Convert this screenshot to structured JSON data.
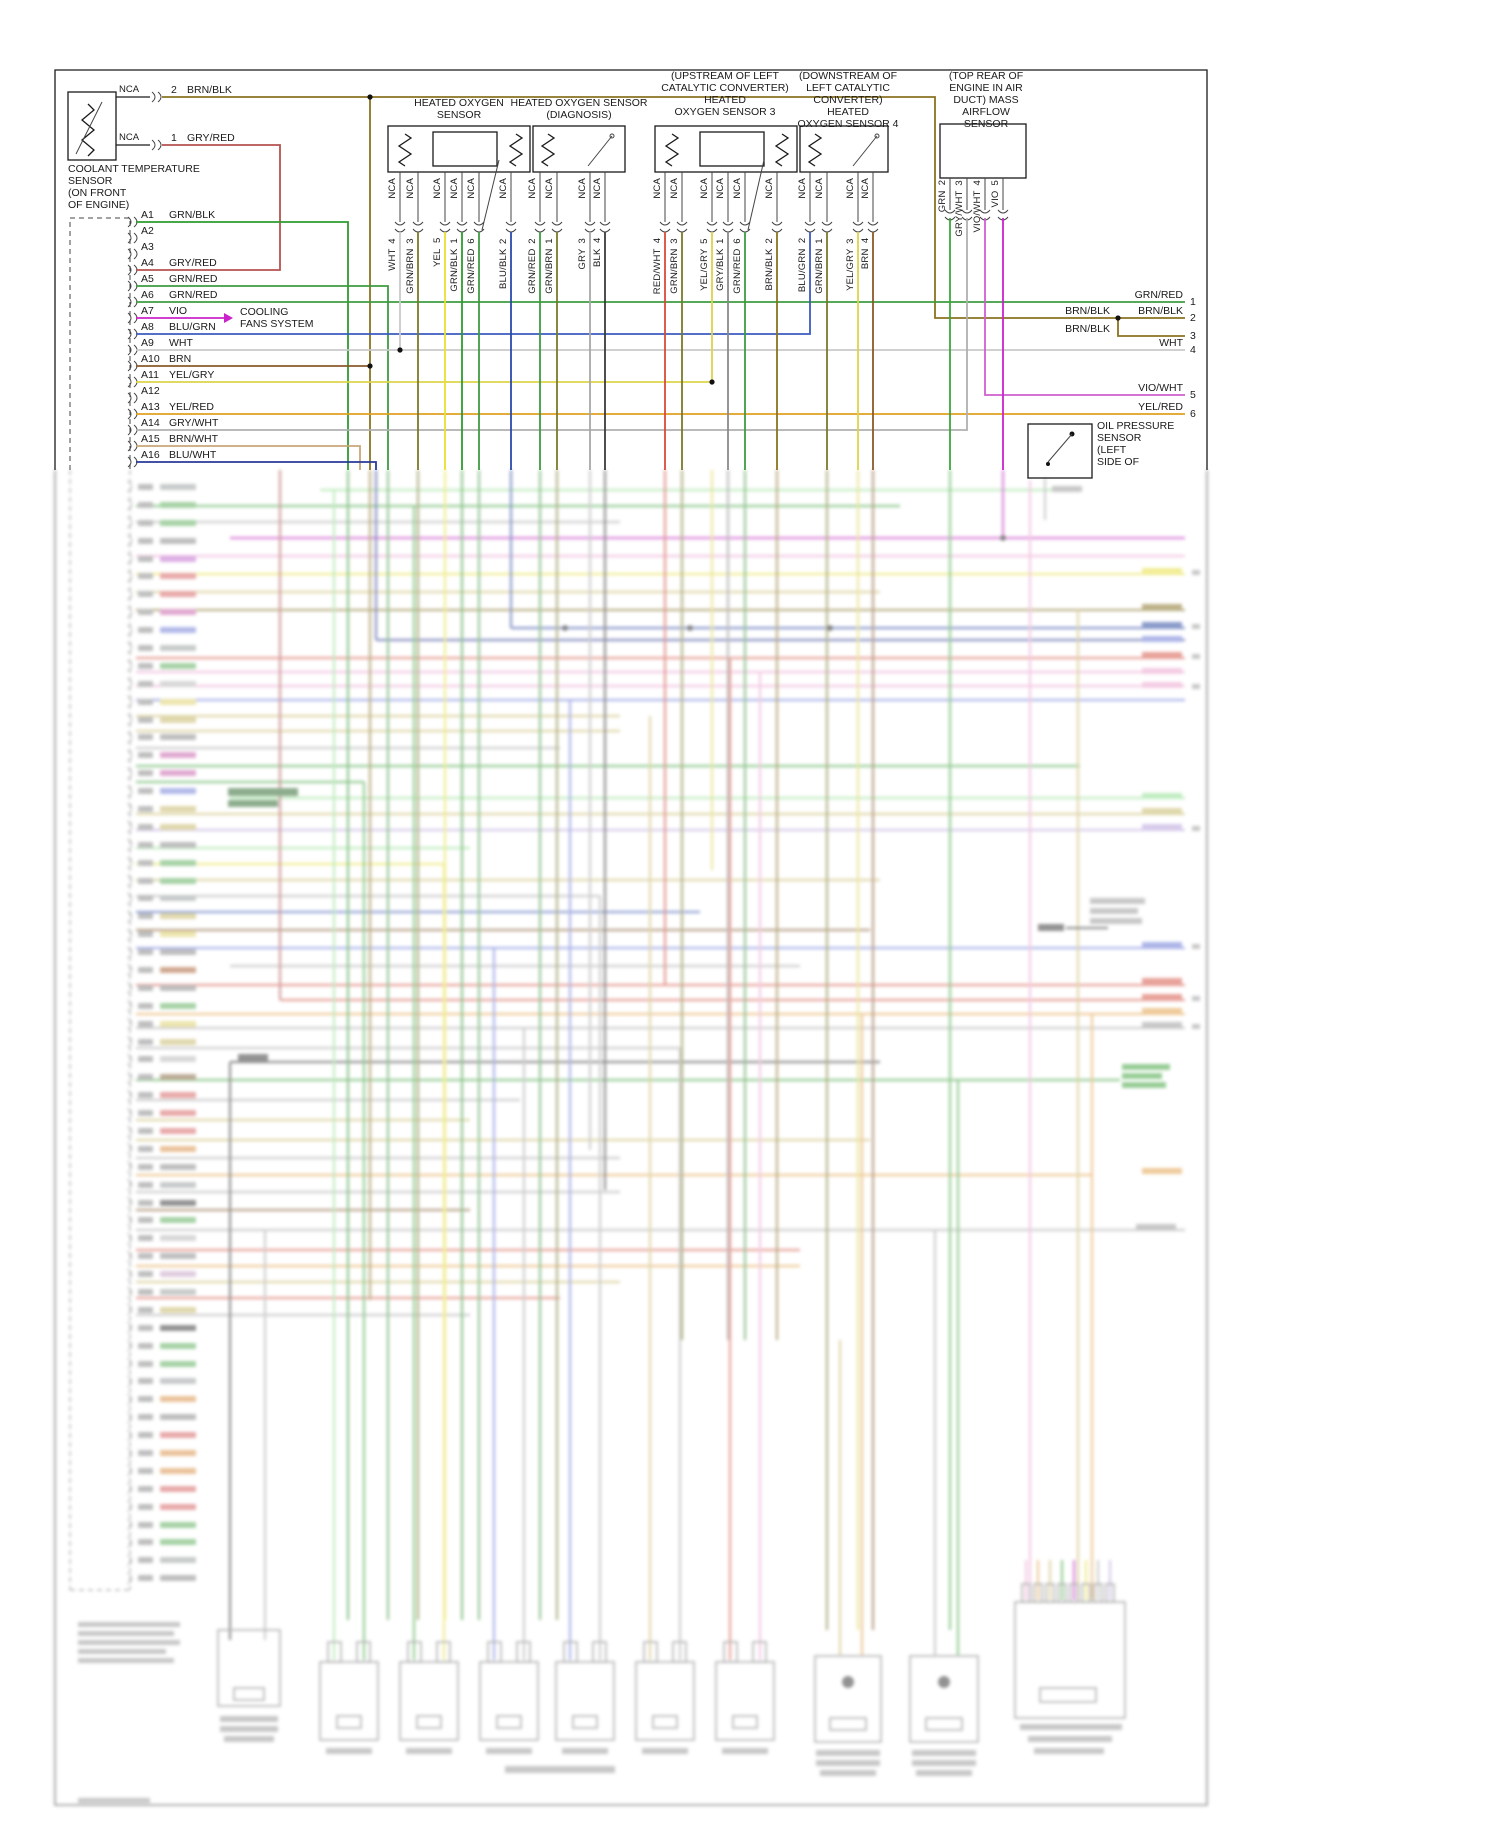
{
  "labels": {
    "nca": "NCA"
  },
  "palette": {
    "BRN/BLK": "#8a7320",
    "GRY/RED": "#b5524f",
    "GRN/BLK": "#2e9b2e",
    "GRN/RED": "#3f9b3f",
    "VIO": "#cc22cc",
    "BLU/GRN": "#3c5bc0",
    "WHT": "#c9c9c9",
    "BRN": "#8a5a2a",
    "YEL/GRY": "#ddd44a",
    "YEL": "#e8e030",
    "YEL/RED": "#e0a020",
    "GRY/WHT": "#b0b0b0",
    "BRN/WHT": "#c8a878",
    "BLU/WHT": "#2a3a9a",
    "RED/WHT": "#d94a3a",
    "GRY/BLK": "#8a8a8a",
    "GRY": "#a8a8a8",
    "BLK": "#3a3a3a",
    "GRN/BRN": "#7a7a28",
    "BLU/BLK": "#2a4aaa",
    "GRN": "#3aa83a",
    "VIO/WHT": "#cf5fd0"
  },
  "coolant": {
    "title": "COOLANT TEMPERATURE\nSENSOR\n(ON FRONT\nOF ENGINE)",
    "pins": [
      {
        "num": "2",
        "wire": "BRN/BLK"
      },
      {
        "num": "1",
        "wire": "GRY/RED"
      }
    ]
  },
  "cooling_fans": "COOLING\nFANS SYSTEM",
  "ecm": {
    "pins": [
      {
        "pin": "A1",
        "wire": "GRN/BLK"
      },
      {
        "pin": "A2",
        "wire": ""
      },
      {
        "pin": "A3",
        "wire": ""
      },
      {
        "pin": "A4",
        "wire": "GRY/RED"
      },
      {
        "pin": "A5",
        "wire": "GRN/RED"
      },
      {
        "pin": "A6",
        "wire": "GRN/RED"
      },
      {
        "pin": "A7",
        "wire": "VIO"
      },
      {
        "pin": "A8",
        "wire": "BLU/GRN"
      },
      {
        "pin": "A9",
        "wire": "WHT"
      },
      {
        "pin": "A10",
        "wire": "BRN"
      },
      {
        "pin": "A11",
        "wire": "YEL/GRY"
      },
      {
        "pin": "A12",
        "wire": ""
      },
      {
        "pin": "A13",
        "wire": "YEL/RED"
      },
      {
        "pin": "A14",
        "wire": "GRY/WHT"
      },
      {
        "pin": "A15",
        "wire": "BRN/WHT"
      },
      {
        "pin": "A16",
        "wire": "BLU/WHT"
      }
    ]
  },
  "sensors": [
    {
      "title": "HEATED OXYGEN\nSENSOR",
      "pins": [
        {
          "wire": "WHT",
          "num": "4"
        },
        {
          "wire": "GRN/BRN",
          "num": "3"
        },
        {
          "wire": "YEL",
          "num": "5"
        },
        {
          "wire": "GRN/BLK",
          "num": "1"
        },
        {
          "wire": "GRN/RED",
          "num": "6"
        },
        {
          "wire": "BLU/BLK",
          "num": "2"
        }
      ]
    },
    {
      "title": "HEATED OXYGEN SENSOR\n(DIAGNOSIS)",
      "pins": [
        {
          "wire": "GRN/RED",
          "num": "2"
        },
        {
          "wire": "GRN/BRN",
          "num": "1"
        },
        {
          "wire": "GRY",
          "num": "3"
        },
        {
          "wire": "BLK",
          "num": "4"
        }
      ]
    },
    {
      "title": "(UPSTREAM OF LEFT\nCATALYTIC CONVERTER)\nHEATED\nOXYGEN SENSOR 3",
      "pins": [
        {
          "wire": "RED/WHT",
          "num": "4"
        },
        {
          "wire": "GRN/BRN",
          "num": "3"
        },
        {
          "wire": "YEL/GRY",
          "num": "5"
        },
        {
          "wire": "GRY/BLK",
          "num": "1"
        },
        {
          "wire": "GRN/RED",
          "num": "6"
        },
        {
          "wire": "BRN/BLK",
          "num": "2"
        }
      ]
    },
    {
      "title": "(DOWNSTREAM OF\nLEFT CATALYTIC\nCONVERTER) HEATED\nOXYGEN SENSOR 4",
      "pins": [
        {
          "wire": "BLU/GRN",
          "num": "2"
        },
        {
          "wire": "GRN/BRN",
          "num": "1"
        },
        {
          "wire": "YEL/GRY",
          "num": "3"
        },
        {
          "wire": "BRN",
          "num": "4"
        }
      ]
    },
    {
      "title": "(TOP REAR OF\nENGINE IN AIR\nDUCT) MASS AIRFLOW\nSENSOR",
      "pins": [
        {
          "wire": "GRN",
          "num": "2"
        },
        {
          "wire": "GRY/WHT",
          "num": "3"
        },
        {
          "wire": "VIO/WHT",
          "num": "4"
        },
        {
          "wire": "VIO",
          "num": "5"
        }
      ]
    }
  ],
  "right_exits": [
    {
      "label": "GRN/RED",
      "num": "1"
    },
    {
      "label_left": "BRN/BLK",
      "label": "BRN/BLK",
      "num": "2"
    },
    {
      "label_left": "BRN/BLK",
      "num": "3"
    },
    {
      "label": "WHT",
      "num": "4"
    },
    {
      "label": "VIO/WHT",
      "num": "5"
    },
    {
      "label": "YEL/RED",
      "num": "6"
    }
  ],
  "oil_pressure": {
    "title": "OIL PRESSURE\nSENSOR\n(LEFT\nSIDE OF"
  },
  "faded": {
    "left_rows": [
      "#9aa0a0",
      "#58b058",
      "#58b058",
      "#8a8a8a",
      "#c86ad8",
      "#e06060",
      "#e06060",
      "#d060b0",
      "#7080e0",
      "#9aa0a0",
      "#58b058",
      "#b8b8b8",
      "#e0d060",
      "#c8b860",
      "#8a8a8a",
      "#d060b0",
      "#d060b0",
      "#7080e0",
      "#c8b860",
      "#c8b860",
      "#8a8a8a",
      "#58b058",
      "#58b058",
      "#9aa0a0",
      "#c8b860",
      "#e0d060",
      "#8a8a8a",
      "#b06030",
      "#8a8a8a",
      "#58b058",
      "#e0d060",
      "#c8b860",
      "#b8b8b8",
      "#8a6a40",
      "#e06060",
      "#e06060",
      "#e06060",
      "#e09040",
      "#8a8a8a",
      "#9aa0a0",
      "#3a3a3a",
      "#58b058",
      "#b8b8b8",
      "#8a8a8a",
      "#c8a2c8",
      "#9aa0a0",
      "#c8b860",
      "#3a3a3a",
      "#58b058",
      "#58b058",
      "#9aa0a0",
      "#e09040",
      "#8a8a8a",
      "#e06060",
      "#e09040",
      "#e09040",
      "#e06060",
      "#e06060",
      "#58b058",
      "#58b058",
      "#9aa0a0",
      "#8a8a8a"
    ]
  }
}
